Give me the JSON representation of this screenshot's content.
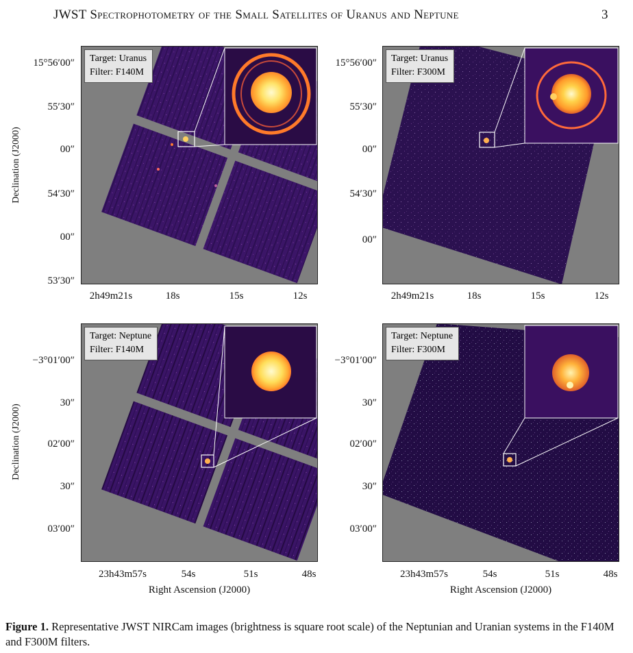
{
  "running_head": {
    "title": "JWST Spectrophotometry of the Small Satellites of Uranus and Neptune",
    "page_number": "3"
  },
  "axes": {
    "ylabel": "Declination (J2000)",
    "xlabel": "Right Ascension (J2000)"
  },
  "panels": [
    {
      "id": "uranus-f140m",
      "target": "Target: Uranus",
      "filter": "Filter: F140M",
      "y_ticks": [
        "15°56′00″",
        "55′30″",
        "00″",
        "54′30″",
        "00″",
        "53′30″"
      ],
      "x_ticks": [
        "2h49m21s",
        "18s",
        "15s",
        "12s"
      ]
    },
    {
      "id": "uranus-f300m",
      "target": "Target: Uranus",
      "filter": "Filter: F300M",
      "y_ticks": [
        "15°56′00″",
        "55′30″",
        "00″",
        "54′30″",
        "00″"
      ],
      "x_ticks": [
        "2h49m21s",
        "18s",
        "15s",
        "12s"
      ]
    },
    {
      "id": "neptune-f140m",
      "target": "Target: Neptune",
      "filter": "Filter: F140M",
      "y_ticks": [
        "−3°01′00″",
        "30″",
        "02′00″",
        "30″",
        "03′00″"
      ],
      "x_ticks": [
        "23h43m57s",
        "54s",
        "51s",
        "48s"
      ]
    },
    {
      "id": "neptune-f300m",
      "target": "Target: Neptune",
      "filter": "Filter: F300M",
      "y_ticks": [
        "−3°01′00″",
        "30″",
        "02′00″",
        "30″",
        "03′00″"
      ],
      "x_ticks": [
        "23h43m57s",
        "54s",
        "51s",
        "48s"
      ]
    }
  ],
  "caption": {
    "label": "Figure 1.",
    "text": " Representative JWST NIRCam images (brightness is square root scale) of the Neptunian and Uranian systems in the F140M and F300M filters."
  },
  "colors": {
    "background_gray": "#808080",
    "image_purple": "#3a1566",
    "planet_core": "#fff6a8",
    "ring": "#ff8a2a"
  }
}
